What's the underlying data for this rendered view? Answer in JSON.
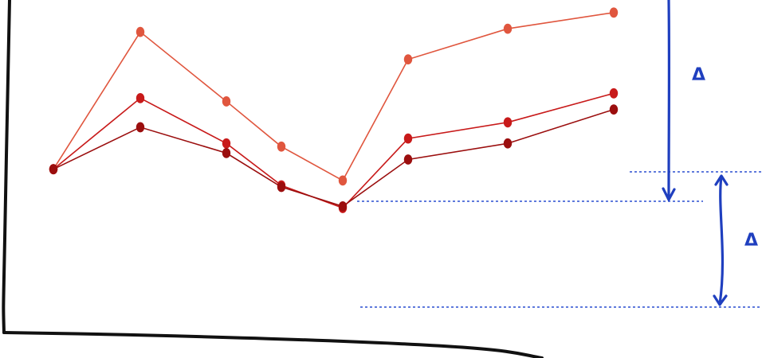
{
  "colors": {
    "frame": "#111111",
    "series_top": "#e0563e",
    "series_middle": "#c81a1a",
    "series_bottom": "#9b0e0e",
    "annotation": "#1f3fbf",
    "guide": "#2a4fd0"
  },
  "series": [
    {
      "key": "top",
      "values": [
        10,
        95,
        52,
        24,
        3,
        78,
        97,
        107
      ]
    },
    {
      "key": "middle",
      "values": [
        10,
        54,
        26,
        0,
        -14,
        29,
        39,
        57
      ]
    },
    {
      "key": "bottom",
      "values": [
        10,
        36,
        20,
        -1,
        -13,
        16,
        26,
        47
      ]
    }
  ],
  "annotations": {
    "delta_upper": {
      "label": "Δ",
      "icon": "double-headed-arrow-icon"
    },
    "delta_lower": {
      "label": "Δ",
      "icon": "arrow-icon"
    }
  }
}
